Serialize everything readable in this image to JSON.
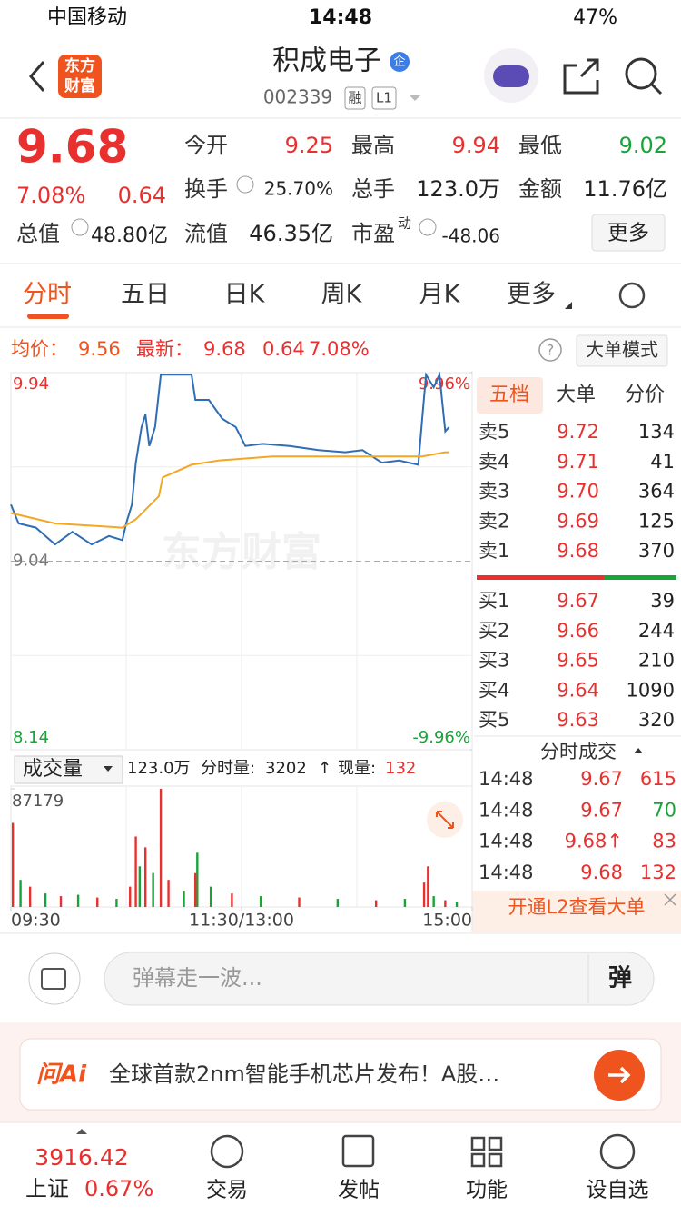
{
  "status": {
    "carrier": "中国移动",
    "time": "14:48",
    "battery": "47%"
  },
  "nav": {
    "logo_top": "东方",
    "logo_bottom": "财富",
    "title": "积成电子",
    "badge": "企",
    "code": "002339",
    "tags": [
      "融",
      "L1"
    ]
  },
  "quote": {
    "price": "9.68",
    "change_pct": "7.08%",
    "change": "0.64",
    "fields": [
      {
        "label": "今开",
        "value": "9.25"
      },
      {
        "label": "最高",
        "value": "9.94"
      },
      {
        "label": "最低",
        "value": "9.02"
      },
      {
        "label": "换手",
        "value": "25.70%"
      },
      {
        "label": "总手",
        "value": "123.0万"
      },
      {
        "label": "金额",
        "value": "11.76亿"
      },
      {
        "label": "总值",
        "value": "48.80亿"
      },
      {
        "label": "流值",
        "value": "46.35亿"
      },
      {
        "label": "市盈",
        "sup": "动",
        "value": "-48.06"
      }
    ],
    "more": "更多"
  },
  "tabs": [
    "分时",
    "五日",
    "日K",
    "周K",
    "月K",
    "更多"
  ],
  "info": {
    "avg_label": "均价：",
    "avg": "9.56",
    "latest_label": "最新：",
    "latest": "9.68",
    "change": "0.64",
    "pct": "7.08%",
    "mode": "大单模式"
  },
  "watermark": "东方财富",
  "order_book": {
    "tabs": [
      "五档",
      "大单",
      "分价"
    ],
    "asks": [
      {
        "label": "卖5",
        "price": "9.72",
        "volume": "134"
      },
      {
        "label": "卖4",
        "price": "9.71",
        "volume": "41"
      },
      {
        "label": "卖3",
        "price": "9.70",
        "volume": "364"
      },
      {
        "label": "卖2",
        "price": "9.69",
        "volume": "125"
      },
      {
        "label": "卖1",
        "price": "9.68",
        "volume": "370"
      }
    ],
    "bids": [
      {
        "label": "买1",
        "price": "9.67",
        "volume": "39"
      },
      {
        "label": "买2",
        "price": "9.66",
        "volume": "244"
      },
      {
        "label": "买3",
        "price": "9.65",
        "volume": "210"
      },
      {
        "label": "买4",
        "price": "9.64",
        "volume": "1090"
      },
      {
        "label": "买5",
        "price": "9.63",
        "volume": "320"
      }
    ]
  },
  "trades": {
    "title": "分时成交",
    "rows": [
      {
        "time": "14:48",
        "price": "9.67",
        "volume": "615"
      },
      {
        "time": "14:48",
        "price": "9.67",
        "volume": "70"
      },
      {
        "time": "14:48",
        "price": "9.68↑",
        "volume": "83"
      },
      {
        "time": "14:48",
        "price": "9.68",
        "volume": "132"
      }
    ],
    "l2": "开通L2查看大单"
  },
  "volume_bar": {
    "selector": "成交量",
    "total": "123.0万",
    "minute_label": "分时量:",
    "minute_volume": "3202",
    "arrow": "↑",
    "now_label": "现量:",
    "now": "132"
  },
  "chart_data": [
    {
      "type": "line",
      "xlim": [
        0,
        240
      ],
      "ylim": [
        8.14,
        9.94
      ],
      "yticks": [
        9.94,
        9.04,
        8.14
      ],
      "y2lim": [
        -9.96,
        9.96
      ],
      "y2ticks": [
        {
          "value": 9.96,
          "label": "9.96%"
        },
        {
          "value": -9.96,
          "label": "-9.96%"
        }
      ],
      "x": [
        0,
        4,
        13,
        23,
        32,
        42,
        51,
        58,
        60,
        63,
        65,
        68,
        70,
        72,
        75,
        78,
        89,
        94,
        96,
        103,
        110,
        117,
        122,
        131,
        145,
        160,
        174,
        183,
        193,
        202,
        212,
        214,
        216,
        220,
        223,
        226,
        228
      ],
      "series": [
        {
          "name": "最新",
          "color": "#2f6db5",
          "values": [
            9.31,
            9.22,
            9.2,
            9.12,
            9.18,
            9.12,
            9.16,
            9.14,
            9.22,
            9.31,
            9.51,
            9.68,
            9.74,
            9.59,
            9.68,
            9.93,
            9.93,
            9.93,
            9.81,
            9.81,
            9.72,
            9.68,
            9.59,
            9.6,
            9.59,
            9.57,
            9.56,
            9.57,
            9.51,
            9.52,
            9.5,
            9.72,
            9.93,
            9.87,
            9.93,
            9.66,
            9.68
          ]
        },
        {
          "name": "均价",
          "color": "#f5a623",
          "x": [
            0,
            23,
            58,
            65,
            77,
            79,
            94,
            108,
            136,
            183,
            214,
            226,
            228
          ],
          "values": [
            9.27,
            9.22,
            9.2,
            9.24,
            9.35,
            9.44,
            9.5,
            9.52,
            9.54,
            9.54,
            9.54,
            9.56,
            9.56
          ]
        }
      ]
    },
    {
      "type": "bar",
      "xlim": [
        0,
        240
      ],
      "ylim": [
        0,
        87179
      ],
      "yticks": [
        87179
      ],
      "xticks": [
        {
          "value": 0,
          "label": "09:30"
        },
        {
          "value": 120,
          "label": "11:30/13:00"
        },
        {
          "value": 240,
          "label": "15:00"
        }
      ],
      "x": [
        1,
        5,
        10,
        18,
        26,
        35,
        45,
        55,
        62,
        65,
        67,
        70,
        74,
        78,
        82,
        90,
        97,
        96,
        104,
        115,
        130,
        150,
        170,
        190,
        205,
        215,
        217,
        220,
        226,
        232
      ],
      "values": [
        62000,
        20000,
        15000,
        10000,
        8000,
        9000,
        7000,
        6000,
        15000,
        52000,
        30000,
        44000,
        25000,
        87179,
        20000,
        12000,
        40000,
        25000,
        15000,
        10000,
        8000,
        7000,
        6000,
        5000,
        6000,
        18000,
        30000,
        8000,
        5000,
        4000
      ],
      "colors": [
        "#e8312f",
        "#1aa33b",
        "#e8312f",
        "#1aa33b",
        "#e8312f",
        "#1aa33b",
        "#e8312f",
        "#1aa33b",
        "#e8312f",
        "#e8312f",
        "#1aa33b",
        "#e8312f",
        "#1aa33b",
        "#e8312f",
        "#e8312f",
        "#1aa33b",
        "#1aa33b",
        "#e8312f",
        "#1aa33b",
        "#e8312f",
        "#1aa33b",
        "#e8312f",
        "#1aa33b",
        "#e8312f",
        "#1aa33b",
        "#e8312f",
        "#e8312f",
        "#1aa33b",
        "#e8312f",
        "#1aa33b"
      ]
    }
  ],
  "comment": {
    "placeholder": "弹幕走一波...",
    "button": "弹"
  },
  "ad": {
    "brand": "问Ai",
    "text": "全球首款2nm智能手机芯片发布！A股…"
  },
  "bottom": {
    "index_value": "3916.42",
    "index_name": "上证",
    "index_pct": "0.67%",
    "items": [
      "交易",
      "发帖",
      "功能",
      "设自选"
    ]
  }
}
